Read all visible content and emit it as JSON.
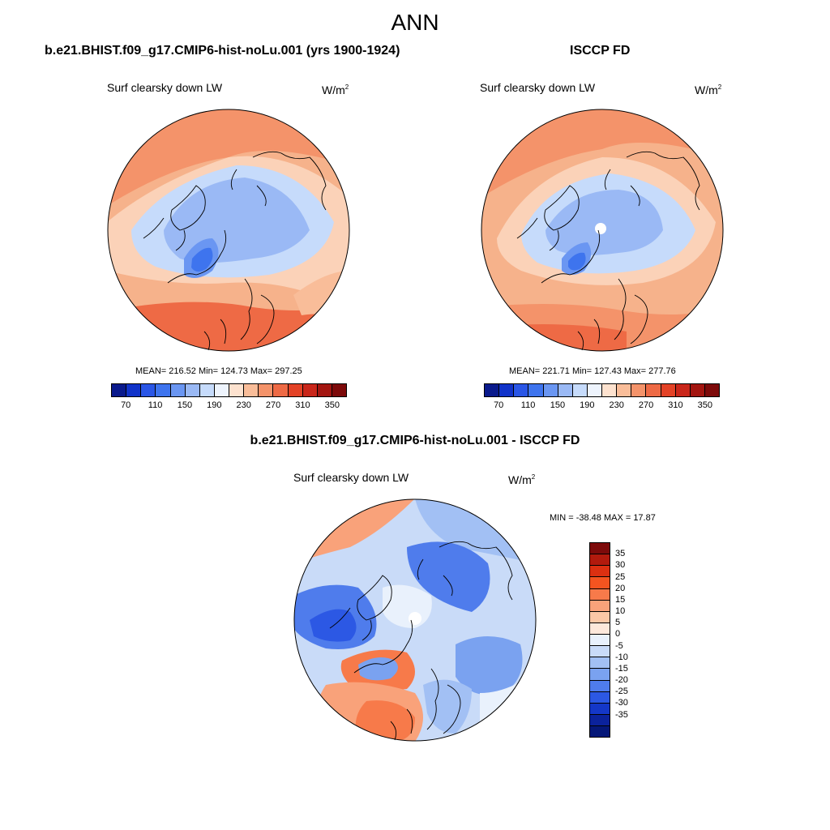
{
  "page": {
    "title": "ANN"
  },
  "panels": [
    {
      "title": "b.e21.BHIST.f09_g17.CMIP6-hist-noLu.001 (yrs 1900-1924)",
      "variable": "Surf clearsky down LW",
      "units": "W/m",
      "units_sup": "2",
      "stats": "MEAN= 216.52  Min= 124.73  Max= 297.25"
    },
    {
      "title": "ISCCP FD",
      "variable": "Surf clearsky down LW",
      "units": "W/m",
      "units_sup": "2",
      "stats": "MEAN= 221.71  Min= 127.43  Max= 277.76"
    },
    {
      "title": "b.e21.BHIST.f09_g17.CMIP6-hist-noLu.001 - ISCCP FD",
      "variable": "Surf clearsky down LW",
      "units": "W/m",
      "units_sup": "2",
      "stats": "MIN = -38.48 MAX =  17.87"
    }
  ],
  "colorbar_abs": {
    "colors": [
      "#0a1a8c",
      "#1133c9",
      "#2a56e6",
      "#3e74ee",
      "#6a96f2",
      "#9ab9f5",
      "#c6dbfb",
      "#eef4fd",
      "#fde2cf",
      "#f9bd99",
      "#f4936a",
      "#ee6a45",
      "#e34226",
      "#c9261a",
      "#a31510",
      "#7d0a0a"
    ],
    "tick_labels": [
      "70",
      "110",
      "150",
      "190",
      "230",
      "270",
      "310",
      "350"
    ]
  },
  "colorbar_diff": {
    "colors": [
      "#7d0a0a",
      "#b21a0d",
      "#dc3011",
      "#f45420",
      "#f77a4a",
      "#f9a27a",
      "#fbc7a6",
      "#fde8db",
      "#e9f1fc",
      "#c9dbf8",
      "#a2c0f4",
      "#7aa2f0",
      "#4f7cec",
      "#2c58e4",
      "#1437c8",
      "#0b229c",
      "#051778"
    ],
    "tick_labels": [
      "35",
      "30",
      "25",
      "20",
      "15",
      "10",
      "5",
      "0",
      "-5",
      "-10",
      "-15",
      "-20",
      "-25",
      "-30",
      "-35"
    ]
  },
  "maps": {
    "model": {
      "pole_missing": false
    },
    "obs": {
      "pole_missing": true
    },
    "diff": {
      "pole_missing": true
    }
  }
}
